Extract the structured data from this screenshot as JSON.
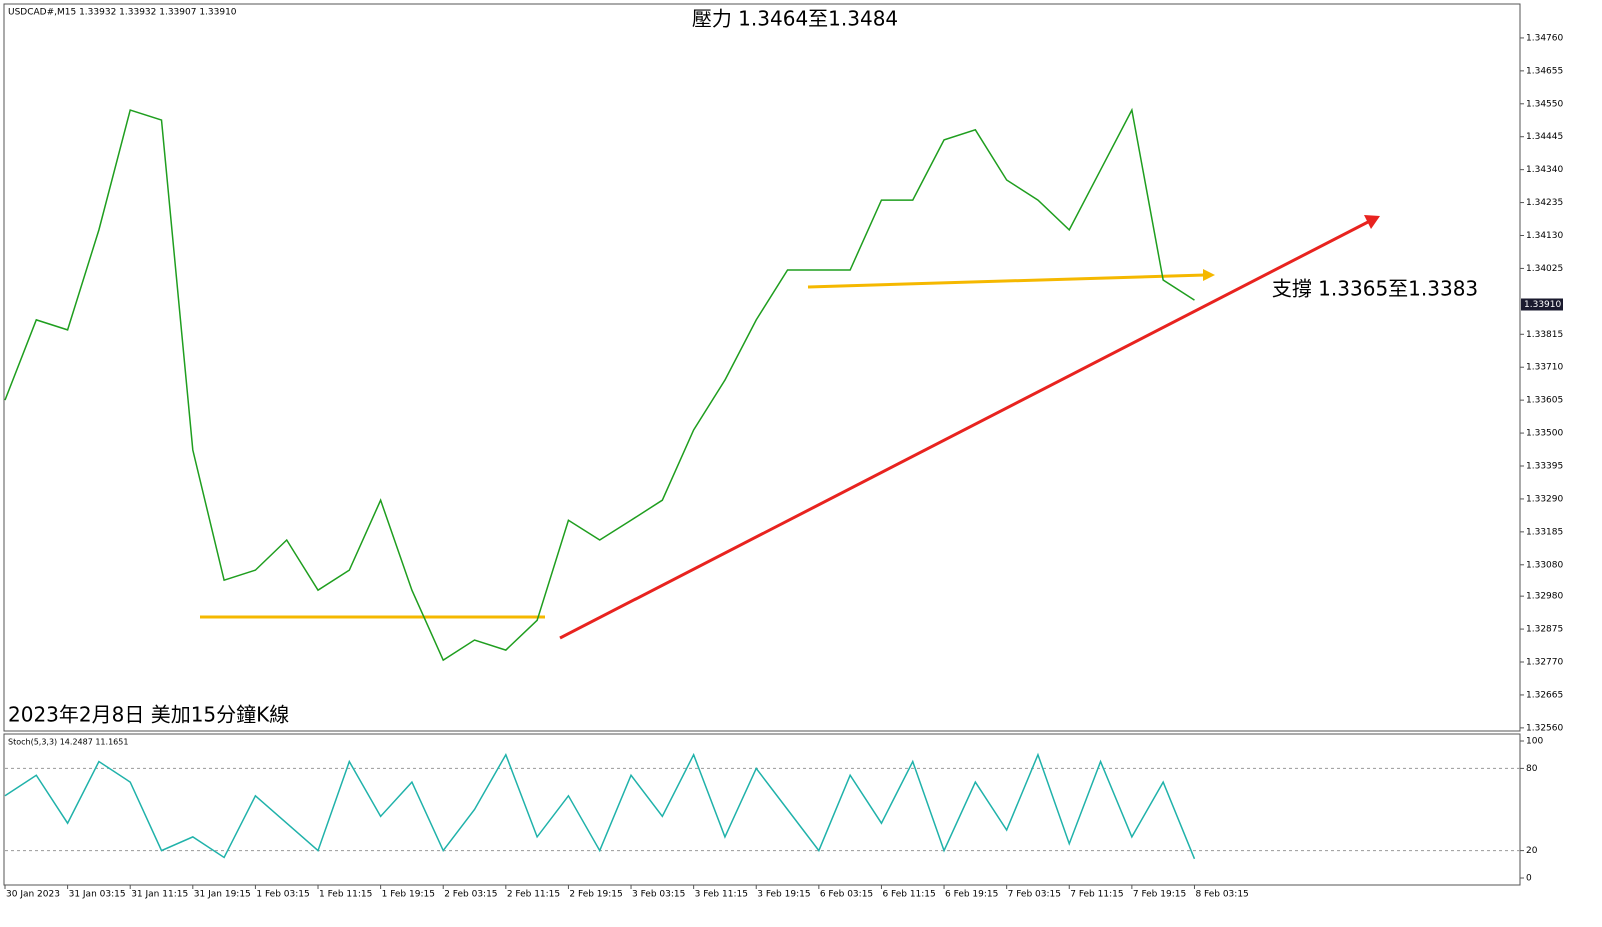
{
  "chart_data": [
    {
      "type": "line",
      "header": "USDCAD#,M15  1.33932 1.33932 1.33907 1.33910",
      "annotations": [
        "壓力 1.3464至1.3484",
        "支撐 1.3365至1.3383",
        "2023年2月8日 美加15分鐘K線"
      ],
      "x": [
        0,
        4,
        8,
        12,
        16,
        20,
        24,
        28,
        32,
        36,
        40,
        44,
        48,
        52,
        56,
        60,
        64,
        68,
        72,
        76,
        80,
        84,
        88,
        92,
        96,
        100,
        104,
        108,
        112,
        116,
        120,
        124,
        128,
        132,
        136,
        140,
        144,
        148,
        152
      ],
      "series": [
        {
          "name": "USDCAD#,M15",
          "color": "#1f9e1f",
          "values": [
            1.33605,
            1.33861,
            1.33829,
            1.34148,
            1.3453,
            1.34498,
            1.33446,
            1.33031,
            1.33063,
            1.33159,
            1.32999,
            1.33063,
            1.33286,
            1.32999,
            1.32776,
            1.3284,
            1.32808,
            1.32903,
            1.33222,
            1.33159,
            1.33222,
            1.33286,
            1.3351,
            1.33669,
            1.33861,
            1.3402,
            1.3402,
            1.3402,
            1.34243,
            1.34243,
            1.34435,
            1.34467,
            1.34307,
            1.34243,
            1.34148,
            1.34339,
            1.3453,
            1.33988,
            1.33924
          ]
        }
      ],
      "current_price": {
        "value": 1.3391,
        "label": "1.33910"
      },
      "xlim": [
        0,
        193.6
      ],
      "xticks": [
        {
          "value": 0,
          "label": "30 Jan 2023"
        },
        {
          "value": 8,
          "label": "31 Jan 03:15"
        },
        {
          "value": 16,
          "label": "31 Jan 11:15"
        },
        {
          "value": 24,
          "label": "31 Jan 19:15"
        },
        {
          "value": 32,
          "label": "1 Feb 03:15"
        },
        {
          "value": 40,
          "label": "1 Feb 11:15"
        },
        {
          "value": 48,
          "label": "1 Feb 19:15"
        },
        {
          "value": 56,
          "label": "2 Feb 03:15"
        },
        {
          "value": 64,
          "label": "2 Feb 11:15"
        },
        {
          "value": 72,
          "label": "2 Feb 19:15"
        },
        {
          "value": 80,
          "label": "3 Feb 03:15"
        },
        {
          "value": 88,
          "label": "3 Feb 11:15"
        },
        {
          "value": 96,
          "label": "3 Feb 19:15"
        },
        {
          "value": 104,
          "label": "6 Feb 03:15"
        },
        {
          "value": 112,
          "label": "6 Feb 11:15"
        },
        {
          "value": 120,
          "label": "6 Feb 19:15"
        },
        {
          "value": 128,
          "label": "7 Feb 03:15"
        },
        {
          "value": 136,
          "label": "7 Feb 11:15"
        },
        {
          "value": 144,
          "label": "7 Feb 19:15"
        },
        {
          "value": 152,
          "label": "8 Feb 03:15"
        }
      ],
      "ylim": [
        1.3255,
        1.34865
      ],
      "yticks": [
        {
          "value": 1.3476,
          "label": "1.34760"
        },
        1.34655,
        {
          "value": 1.3455,
          "label": "1.34550"
        },
        1.34445,
        {
          "value": 1.3434,
          "label": "1.34340"
        },
        1.34235,
        {
          "value": 1.3413,
          "label": "1.34130"
        },
        1.34025,
        1.33815,
        {
          "value": 1.3371,
          "label": "1.33710"
        },
        1.33605,
        {
          "value": 1.335,
          "label": "1.33500"
        },
        1.33395,
        {
          "value": 1.3329,
          "label": "1.33290"
        },
        1.33185,
        {
          "value": 1.3308,
          "label": "1.33080"
        },
        {
          "value": 1.3298,
          "label": "1.32980"
        },
        1.32875,
        {
          "value": 1.3277,
          "label": "1.32770"
        },
        1.32665,
        {
          "value": 1.3256,
          "label": "1.32560"
        }
      ]
    },
    {
      "type": "line",
      "title": "Stoch(5,3,3) 14.2487 11.1651",
      "x": [
        0,
        4,
        8,
        12,
        16,
        20,
        24,
        28,
        32,
        36,
        40,
        44,
        48,
        52,
        56,
        60,
        64,
        68,
        72,
        76,
        80,
        84,
        88,
        92,
        96,
        100,
        104,
        108,
        112,
        116,
        120,
        124,
        128,
        132,
        136,
        140,
        144,
        148,
        152
      ],
      "series": [
        {
          "name": "Stoch",
          "color": "#20b2aa",
          "values": [
            60,
            75,
            40,
            85,
            70,
            20,
            30,
            15,
            60,
            40,
            20,
            85,
            45,
            70,
            20,
            50,
            90,
            30,
            60,
            20,
            75,
            45,
            90,
            30,
            80,
            50,
            20,
            75,
            40,
            85,
            20,
            70,
            35,
            90,
            25,
            85,
            30,
            70,
            14
          ]
        }
      ],
      "xlim": [
        0,
        193.6
      ],
      "ylim": [
        0,
        100
      ],
      "yticks": [
        0,
        20,
        80,
        100
      ],
      "grid_dashed": [
        20,
        80
      ]
    }
  ]
}
